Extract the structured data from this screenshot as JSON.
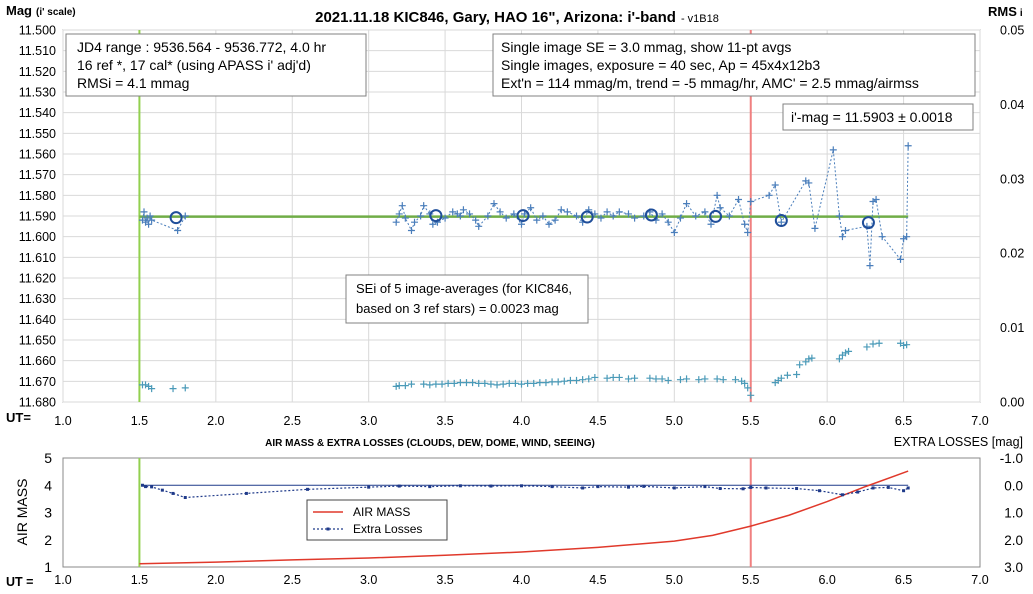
{
  "chart_data": [
    {
      "type": "scatter",
      "title": "2021.11.18 KIC846, Gary, HAO 16\", Arizona: i'-band",
      "title_suffix": "- v1B18",
      "ylabel": "Mag",
      "ylabel_suffix": "(i' scale)",
      "y2label": "RMS",
      "y2label_suffix": "i",
      "xlabel": "UT=",
      "xlim": [
        1.0,
        7.0
      ],
      "ylim": [
        11.68,
        11.5
      ],
      "y2lim": [
        0.0,
        0.05
      ],
      "x_ticks": [
        "1.0",
        "1.5",
        "2.0",
        "2.5",
        "3.0",
        "3.5",
        "4.0",
        "4.5",
        "5.0",
        "5.5",
        "6.0",
        "6.5",
        "7.0"
      ],
      "y_ticks": [
        "11.500",
        "11.510",
        "11.520",
        "11.530",
        "11.540",
        "11.550",
        "11.560",
        "11.570",
        "11.580",
        "11.590",
        "11.600",
        "11.610",
        "11.620",
        "11.630",
        "11.640",
        "11.650",
        "11.660",
        "11.670",
        "11.680"
      ],
      "y2_ticks": [
        "0.05",
        "0.04",
        "0.03",
        "0.02",
        "0.01",
        "0.00"
      ],
      "grid": true,
      "vertical_lines": [
        {
          "x": 1.5,
          "color": "#92d050"
        },
        {
          "x": 5.5,
          "color": "#f08080"
        }
      ],
      "fit_line": {
        "y": 11.5903,
        "x": [
          1.5,
          6.53
        ],
        "color": "#70ad47"
      },
      "info_boxes": [
        {
          "lines": [
            "JD4 range : 9536.564 - 9536.772, 4.0  hr",
            "16 ref *, 17 cal* (using APASS i' adj'd)",
            "RMSi = 4.1 mmag"
          ]
        },
        {
          "lines": [
            "Single image SE = 3.0 mmag, show 11-pt avgs",
            "Single images, exposure = 40 sec, Ap = 45x4x12b3",
            "Ext'n = 114 mmag/m, trend = -5 mmag/hr, AMC' = 2.5 mmag/airmss"
          ]
        },
        {
          "lines": [
            "i'-mag = 11.5903 ± 0.0018"
          ]
        },
        {
          "lines": [
            "SEi of 5 image-averages (for KIC846,",
            "based on 3 ref stars) = 0.0023 mag"
          ]
        }
      ],
      "series": [
        {
          "style": "plus-dashed",
          "color": "#4a7ebb",
          "x": [
            1.52,
            1.53,
            1.54,
            1.55,
            1.56,
            1.57,
            1.58,
            1.75,
            1.8,
            3.18,
            3.2,
            3.22,
            3.24,
            3.28,
            3.3,
            3.34,
            3.36,
            3.4,
            3.42,
            3.45,
            3.5,
            3.55,
            3.58,
            3.6,
            3.62,
            3.66,
            3.7,
            3.72,
            3.78,
            3.82,
            3.86,
            3.9,
            3.95,
            4.0,
            4.02,
            4.06,
            4.1,
            4.14,
            4.18,
            4.22,
            4.26,
            4.3,
            4.36,
            4.4,
            4.44,
            4.48,
            4.52,
            4.56,
            4.6,
            4.64,
            4.7,
            4.74,
            4.8,
            4.84,
            4.88,
            4.92,
            4.96,
            5.0,
            5.04,
            5.08,
            5.14,
            5.2,
            5.24,
            5.28,
            5.3,
            5.36,
            5.42,
            5.46,
            5.48,
            5.5,
            5.62,
            5.66,
            5.7,
            5.86,
            5.88,
            5.92,
            6.04,
            6.08,
            6.1,
            6.12,
            6.26,
            6.28,
            6.3,
            6.32,
            6.36,
            6.48,
            6.5,
            6.52,
            6.53
          ],
          "y": [
            11.592,
            11.588,
            11.593,
            11.591,
            11.594,
            11.59,
            11.592,
            11.597,
            11.59,
            11.593,
            11.589,
            11.585,
            11.591,
            11.597,
            11.593,
            11.59,
            11.585,
            11.589,
            11.594,
            11.593,
            11.591,
            11.588,
            11.589,
            11.59,
            11.587,
            11.589,
            11.592,
            11.595,
            11.59,
            11.584,
            11.588,
            11.591,
            11.589,
            11.594,
            11.589,
            11.586,
            11.592,
            11.59,
            11.594,
            11.592,
            11.587,
            11.588,
            11.59,
            11.593,
            11.587,
            11.589,
            11.591,
            11.588,
            11.59,
            11.588,
            11.589,
            11.591,
            11.59,
            11.588,
            11.592,
            11.589,
            11.593,
            11.598,
            11.591,
            11.584,
            11.59,
            11.588,
            11.594,
            11.58,
            11.586,
            11.59,
            11.582,
            11.594,
            11.598,
            11.583,
            11.58,
            11.575,
            11.593,
            11.573,
            11.574,
            11.596,
            11.558,
            11.59,
            11.6,
            11.597,
            11.595,
            11.614,
            11.583,
            11.582,
            11.6,
            11.611,
            11.601,
            11.6,
            11.556
          ]
        },
        {
          "name": "11-pt avgs",
          "style": "circle",
          "color": "#1f4e9a",
          "x": [
            1.74,
            3.44,
            4.01,
            4.43,
            4.85,
            5.27,
            5.7,
            6.27
          ],
          "y": [
            11.5908,
            11.5898,
            11.5898,
            11.5905,
            11.5895,
            11.5902,
            11.5922,
            11.5932
          ]
        },
        {
          "name": "RMSi",
          "axis": "y2",
          "style": "plus",
          "color": "#4a9ab8",
          "x": [
            1.52,
            1.54,
            1.56,
            1.58,
            1.72,
            1.8,
            3.18,
            3.2,
            3.24,
            3.28,
            3.36,
            3.4,
            3.44,
            3.48,
            3.52,
            3.56,
            3.6,
            3.64,
            3.68,
            3.72,
            3.76,
            3.8,
            3.84,
            3.88,
            3.92,
            3.96,
            4.0,
            4.04,
            4.08,
            4.12,
            4.16,
            4.2,
            4.24,
            4.28,
            4.32,
            4.36,
            4.4,
            4.44,
            4.48,
            4.56,
            4.6,
            4.64,
            4.7,
            4.74,
            4.84,
            4.88,
            4.92,
            4.96,
            5.04,
            5.08,
            5.16,
            5.2,
            5.28,
            5.32,
            5.4,
            5.44,
            5.46,
            5.48,
            5.5,
            5.66,
            5.68,
            5.7,
            5.74,
            5.8,
            5.82,
            5.86,
            5.88,
            5.9,
            6.08,
            6.1,
            6.12,
            6.14,
            6.26,
            6.3,
            6.34,
            6.48,
            6.5,
            6.52
          ],
          "y": [
            0.0023,
            0.0023,
            0.0021,
            0.0018,
            0.0018,
            0.0019,
            0.0021,
            0.0022,
            0.0022,
            0.0024,
            0.0024,
            0.0023,
            0.0024,
            0.0024,
            0.0025,
            0.0025,
            0.0026,
            0.0026,
            0.0026,
            0.0025,
            0.0025,
            0.0024,
            0.0023,
            0.0024,
            0.0025,
            0.0025,
            0.0024,
            0.0025,
            0.0025,
            0.0026,
            0.0026,
            0.0027,
            0.0027,
            0.0028,
            0.0029,
            0.0029,
            0.003,
            0.0031,
            0.0033,
            0.0032,
            0.0033,
            0.0033,
            0.0031,
            0.0032,
            0.0032,
            0.0031,
            0.0031,
            0.0029,
            0.003,
            0.0031,
            0.003,
            0.0031,
            0.0031,
            0.003,
            0.003,
            0.0028,
            0.0025,
            0.0019,
            0.0009,
            0.0026,
            0.0029,
            0.0032,
            0.0036,
            0.0037,
            0.005,
            0.0054,
            0.0058,
            0.0059,
            0.0058,
            0.0063,
            0.0066,
            0.0068,
            0.0074,
            0.0078,
            0.0079,
            0.0079,
            0.0076,
            0.0077
          ]
        }
      ]
    },
    {
      "type": "line",
      "title": "AIR MASS & EXTRA LOSSES (CLOUDS, DEW, DOME, WIND, SEEING)",
      "ylabel": "AIR MASS",
      "y2label": "EXTRA LOSSES [mag]",
      "xlabel": "UT =",
      "xlim": [
        1.0,
        7.0
      ],
      "ylim": [
        1,
        5
      ],
      "y2lim": [
        3.0,
        -1.0
      ],
      "x_ticks": [
        "1.0",
        "1.5",
        "2.0",
        "2.5",
        "3.0",
        "3.5",
        "4.0",
        "4.5",
        "5.0",
        "5.5",
        "6.0",
        "6.5",
        "7.0"
      ],
      "y_ticks": [
        "5",
        "4",
        "3",
        "2",
        "1"
      ],
      "y2_ticks": [
        "-1.0",
        "0.0",
        "1.0",
        "2.0",
        "3.0"
      ],
      "grid": false,
      "vertical_lines": [
        {
          "x": 1.5,
          "color": "#92d050"
        },
        {
          "x": 5.5,
          "color": "#f08080"
        }
      ],
      "legend_position": "center-left",
      "baseline": {
        "y2": 0.0,
        "x": [
          1.52,
          6.53
        ],
        "color": "#1f3a8a"
      },
      "series": [
        {
          "name": "AIR MASS",
          "axis": "y",
          "color": "#e0392b",
          "x": [
            1.5,
            2.0,
            2.5,
            3.0,
            3.5,
            4.0,
            4.5,
            5.0,
            5.25,
            5.5,
            5.75,
            6.0,
            6.25,
            6.53
          ],
          "y": [
            1.12,
            1.18,
            1.26,
            1.33,
            1.43,
            1.55,
            1.72,
            1.95,
            2.16,
            2.5,
            2.9,
            3.4,
            3.95,
            4.52
          ]
        },
        {
          "name": "Extra Losses",
          "axis": "y2",
          "color": "#1f3a8a",
          "x": [
            1.52,
            1.54,
            1.58,
            1.65,
            1.72,
            1.8,
            2.2,
            2.6,
            3.0,
            3.2,
            3.4,
            3.6,
            3.8,
            4.0,
            4.2,
            4.4,
            4.5,
            4.7,
            4.8,
            5.0,
            5.2,
            5.3,
            5.45,
            5.5,
            5.6,
            5.8,
            5.95,
            6.1,
            6.2,
            6.3,
            6.4,
            6.5,
            6.53
          ],
          "y": [
            0.0,
            0.05,
            0.06,
            0.18,
            0.3,
            0.45,
            0.3,
            0.15,
            0.07,
            0.03,
            0.05,
            0.02,
            0.03,
            0.02,
            0.05,
            0.1,
            0.05,
            0.07,
            0.04,
            0.1,
            0.05,
            0.12,
            0.13,
            0.08,
            0.1,
            0.12,
            0.2,
            0.35,
            0.25,
            0.1,
            0.08,
            0.2,
            0.1
          ]
        }
      ]
    }
  ]
}
